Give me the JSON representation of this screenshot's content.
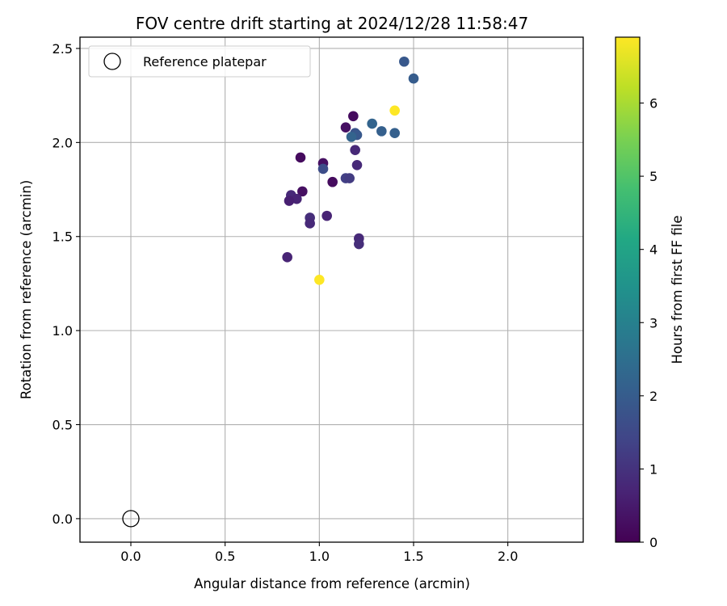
{
  "chart_data": {
    "type": "scatter",
    "title": "FOV centre drift starting at 2024/12/28 11:58:47",
    "xlabel": "Angular distance from reference (arcmin)",
    "ylabel": "Rotation from reference (arcmin)",
    "xlim": [
      -0.27,
      2.4
    ],
    "ylim": [
      -0.125,
      2.56
    ],
    "xticks": [
      0.0,
      0.5,
      1.0,
      1.5,
      2.0
    ],
    "xtick_labels": [
      "0.0",
      "0.5",
      "1.0",
      "1.5",
      "2.0"
    ],
    "yticks": [
      0.0,
      0.5,
      1.0,
      1.5,
      2.0,
      2.5
    ],
    "ytick_labels": [
      "0.0",
      "0.5",
      "1.0",
      "1.5",
      "2.0",
      "2.5"
    ],
    "grid": true,
    "colormap": "viridis",
    "colorbar": {
      "label": "Hours from first FF file",
      "range": [
        0,
        6.9
      ],
      "ticks": [
        0,
        1,
        2,
        3,
        4,
        5,
        6
      ],
      "tick_labels": [
        "0",
        "1",
        "2",
        "3",
        "4",
        "5",
        "6"
      ]
    },
    "legend": {
      "position": "top-left",
      "entries": [
        "Reference platepar"
      ]
    },
    "reference_point": {
      "x": 0.0,
      "y": 0.0,
      "label": "Reference platepar",
      "marker": "open-circle"
    },
    "points": [
      {
        "x": 1.45,
        "y": 2.43,
        "c": 1.9
      },
      {
        "x": 1.5,
        "y": 2.34,
        "c": 2.0
      },
      {
        "x": 1.4,
        "y": 2.17,
        "c": 6.9
      },
      {
        "x": 1.18,
        "y": 2.14,
        "c": 0.2
      },
      {
        "x": 1.28,
        "y": 2.1,
        "c": 2.2
      },
      {
        "x": 1.14,
        "y": 2.08,
        "c": 0.3
      },
      {
        "x": 1.33,
        "y": 2.06,
        "c": 2.1
      },
      {
        "x": 1.19,
        "y": 2.05,
        "c": 1.8
      },
      {
        "x": 1.4,
        "y": 2.05,
        "c": 2.1
      },
      {
        "x": 1.2,
        "y": 2.04,
        "c": 1.9
      },
      {
        "x": 1.17,
        "y": 2.03,
        "c": 2.2
      },
      {
        "x": 1.19,
        "y": 1.96,
        "c": 0.8
      },
      {
        "x": 0.9,
        "y": 1.92,
        "c": 0.2
      },
      {
        "x": 1.02,
        "y": 1.89,
        "c": 0.3
      },
      {
        "x": 1.2,
        "y": 1.88,
        "c": 0.8
      },
      {
        "x": 1.02,
        "y": 1.86,
        "c": 1.6
      },
      {
        "x": 1.14,
        "y": 1.81,
        "c": 1.3
      },
      {
        "x": 1.16,
        "y": 1.81,
        "c": 1.2
      },
      {
        "x": 1.07,
        "y": 1.79,
        "c": 0.2
      },
      {
        "x": 0.91,
        "y": 1.74,
        "c": 0.3
      },
      {
        "x": 0.85,
        "y": 1.72,
        "c": 0.8
      },
      {
        "x": 0.88,
        "y": 1.7,
        "c": 0.7
      },
      {
        "x": 0.84,
        "y": 1.69,
        "c": 0.6
      },
      {
        "x": 1.04,
        "y": 1.61,
        "c": 0.7
      },
      {
        "x": 0.95,
        "y": 1.6,
        "c": 0.9
      },
      {
        "x": 0.95,
        "y": 1.57,
        "c": 0.8
      },
      {
        "x": 1.21,
        "y": 1.49,
        "c": 0.8
      },
      {
        "x": 1.21,
        "y": 1.46,
        "c": 0.9
      },
      {
        "x": 0.83,
        "y": 1.39,
        "c": 0.7
      },
      {
        "x": 1.0,
        "y": 1.27,
        "c": 6.9
      }
    ]
  }
}
